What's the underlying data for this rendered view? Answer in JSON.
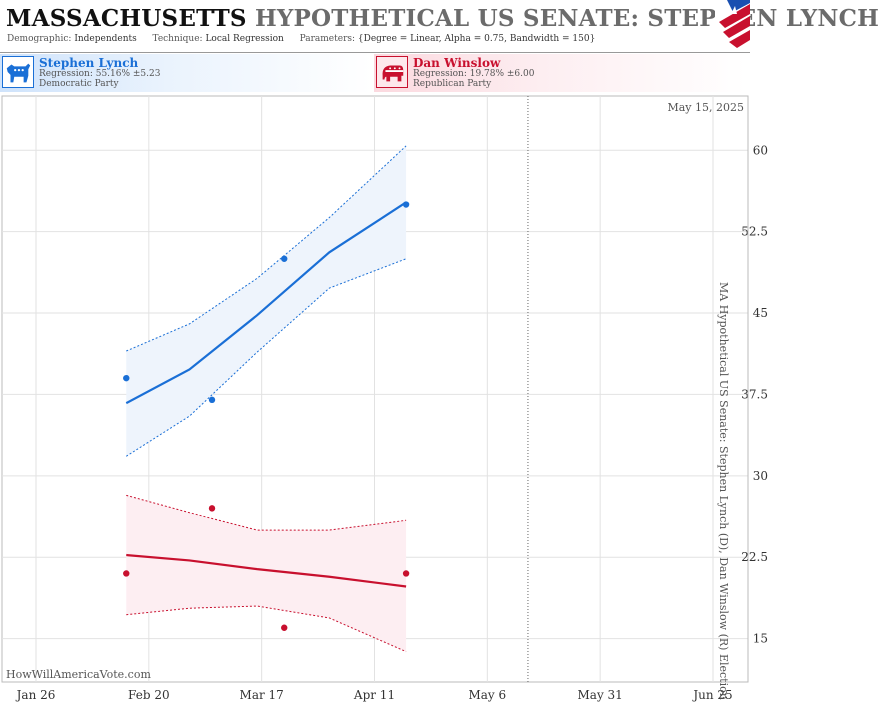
{
  "header": {
    "state": "MASSACHUSETTS",
    "race": "HYPOTHETICAL US SENATE: STEPHEN LYNCH",
    "demographic_label": "Demographic:",
    "demographic": "Independents",
    "technique_label": "Technique:",
    "technique": "Local Regression",
    "parameters_label": "Parameters:",
    "parameters": "{Degree = Linear, Alpha = 0.75, Bandwidth = 150}"
  },
  "candidates": [
    {
      "name": "Stephen Lynch",
      "regression": "Regression: 55.16% ±5.23",
      "party": "Democratic Party",
      "color": "#1a6fd6",
      "icon": "donkey-icon"
    },
    {
      "name": "Dan Winslow",
      "regression": "Regression: 19.78% ±6.00",
      "party": "Republican Party",
      "color": "#c8102e",
      "icon": "elephant-icon"
    }
  ],
  "chart_data": {
    "type": "line",
    "x_axis": {
      "ticks": [
        "Jan 26",
        "Feb 20",
        "Mar 17",
        "Apr 11",
        "May 6",
        "May 31",
        "Jun 25"
      ]
    },
    "y_axis": {
      "ticks": [
        "15",
        "22.5",
        "30",
        "37.5",
        "45",
        "52.5",
        "60"
      ],
      "ylim": [
        11,
        65
      ],
      "position": "right"
    },
    "vertical_label": "MA Hypothetical US Senate: Stephen Lynch (D), Dan Winslow (R) Election",
    "date_marker": "May 15, 2025",
    "watermark": "HowWillAmericaVote.com",
    "grid": true,
    "series": [
      {
        "name": "Stephen Lynch",
        "color": "#1a6fd6",
        "points": [
          [
            "Feb 15",
            39
          ],
          [
            "Mar 6",
            37
          ],
          [
            "Mar 22",
            50
          ],
          [
            "Apr 18",
            55
          ]
        ],
        "trend": [
          [
            "Feb 15",
            36.7
          ],
          [
            "Mar 1",
            39.8
          ],
          [
            "Mar 16",
            44.8
          ],
          [
            "Apr 1",
            50.6
          ],
          [
            "Apr 18",
            55.2
          ]
        ],
        "upper": [
          [
            "Feb 15",
            41.5
          ],
          [
            "Mar 1",
            44.0
          ],
          [
            "Mar 16",
            48.2
          ],
          [
            "Apr 1",
            53.8
          ],
          [
            "Apr 18",
            60.4
          ]
        ],
        "lower": [
          [
            "Feb 15",
            31.8
          ],
          [
            "Mar 1",
            35.5
          ],
          [
            "Mar 16",
            41.4
          ],
          [
            "Apr 1",
            47.3
          ],
          [
            "Apr 18",
            50.0
          ]
        ]
      },
      {
        "name": "Dan Winslow",
        "color": "#c8102e",
        "points": [
          [
            "Feb 15",
            21
          ],
          [
            "Mar 6",
            27
          ],
          [
            "Mar 22",
            16
          ],
          [
            "Apr 18",
            21
          ]
        ],
        "trend": [
          [
            "Feb 15",
            22.7
          ],
          [
            "Mar 1",
            22.2
          ],
          [
            "Mar 16",
            21.4
          ],
          [
            "Apr 1",
            20.7
          ],
          [
            "Apr 18",
            19.8
          ]
        ],
        "upper": [
          [
            "Feb 15",
            28.2
          ],
          [
            "Mar 1",
            26.6
          ],
          [
            "Mar 16",
            25.0
          ],
          [
            "Apr 1",
            25.0
          ],
          [
            "Apr 18",
            25.9
          ]
        ],
        "lower": [
          [
            "Feb 15",
            17.2
          ],
          [
            "Mar 1",
            17.8
          ],
          [
            "Mar 16",
            18.0
          ],
          [
            "Apr 1",
            16.9
          ],
          [
            "Apr 18",
            13.8
          ]
        ]
      }
    ]
  }
}
